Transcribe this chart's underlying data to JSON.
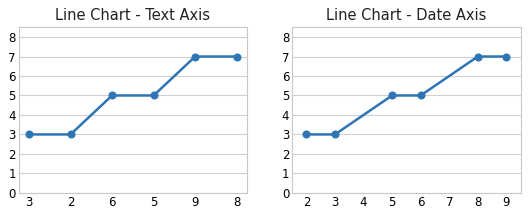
{
  "left_title": "Line Chart - Text Axis",
  "right_title": "Line Chart - Date Axis",
  "text_axis_x": [
    "3",
    "2",
    "6",
    "5",
    "9",
    "8"
  ],
  "text_axis_y": [
    3,
    3,
    5,
    5,
    7,
    7
  ],
  "date_axis_x": [
    2,
    3,
    5,
    6,
    8,
    9
  ],
  "date_axis_y": [
    3,
    3,
    5,
    5,
    7,
    7
  ],
  "date_axis_xlim": [
    1.5,
    9.5
  ],
  "date_axis_xticks": [
    2,
    3,
    4,
    5,
    6,
    7,
    8,
    9
  ],
  "ylim": [
    0,
    8.5
  ],
  "yticks": [
    0,
    1,
    2,
    3,
    4,
    5,
    6,
    7,
    8
  ],
  "line_color": "#2e75b6",
  "marker": "o",
  "marker_size": 5,
  "title_fontsize": 10.5,
  "tick_fontsize": 8.5,
  "plot_bg": "#ffffff",
  "figure_bg": "#ffffff",
  "grid_color": "#d0d0d0",
  "line_width": 1.8,
  "spine_color": "#c0c0c0",
  "border_color": "#c8c8c8"
}
